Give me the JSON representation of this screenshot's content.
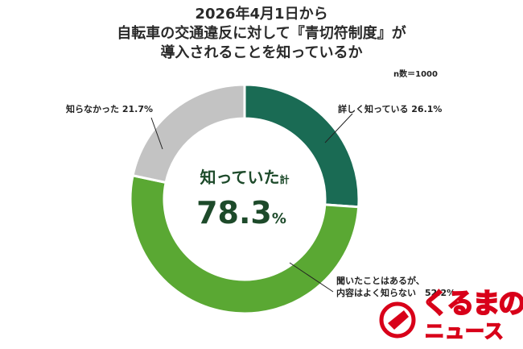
{
  "title": {
    "line1": "2026年4月1日から",
    "line2": "自転車の交通違反に対して『青切符制度』が",
    "line3": "導入されることを知っているか"
  },
  "sample_size": "n数＝1000",
  "center": {
    "label": "知っていた",
    "label_unit": "計",
    "value": "78.3",
    "unit": "%"
  },
  "logo": {
    "line1": "くるまの",
    "line2": "ニュース"
  },
  "colors": {
    "dark_green": "#1a6b54",
    "light_green": "#5aa833",
    "gray": "#c3c3c3"
  },
  "chart_data": {
    "type": "pie",
    "title": "2026年4月1日から自転車の交通違反に対して『青切符制度』が導入されることを知っているか",
    "slices": [
      {
        "label": "詳しく知っている",
        "value": 26.1,
        "display": "詳しく知っている 26.1%",
        "color": "#1a6b54"
      },
      {
        "label": "聞いたことはあるが、内容はよく知らない",
        "value": 52.2,
        "display_line1": "聞いたことはあるが、",
        "display_line2": "内容はよく知らない　52.2%",
        "color": "#5aa833"
      },
      {
        "label": "知らなかった",
        "value": 21.7,
        "display": "知らなかった 21.7%",
        "color": "#c3c3c3"
      }
    ]
  }
}
